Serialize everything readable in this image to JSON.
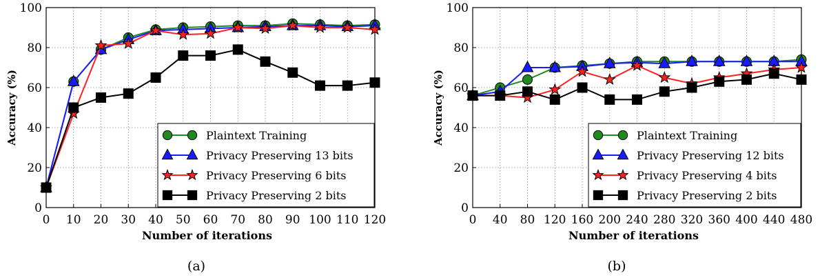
{
  "chart_data": [
    {
      "type": "line",
      "caption": "(a)",
      "xlabel": "Number of iterations",
      "ylabel": "Accuracy (%)",
      "xlim": [
        0,
        120
      ],
      "ylim": [
        0,
        100
      ],
      "x_ticks": [
        0,
        10,
        20,
        30,
        40,
        50,
        60,
        70,
        80,
        90,
        100,
        110,
        120
      ],
      "y_ticks": [
        0,
        20,
        40,
        60,
        80,
        100
      ],
      "grid": true,
      "legend_position": "bottom-right",
      "x": [
        0,
        10,
        20,
        30,
        40,
        50,
        60,
        70,
        80,
        90,
        100,
        110,
        120
      ],
      "series": [
        {
          "name": "Plaintext Training",
          "marker": "circle",
          "color": "#1f8a1f",
          "values": [
            10,
            63,
            79,
            85,
            89,
            90,
            90.5,
            91,
            91,
            92,
            91.5,
            91,
            91.5
          ]
        },
        {
          "name": "Privacy Preserving 13 bits",
          "marker": "triangle",
          "color": "#1a1aff",
          "values": [
            10,
            63,
            79,
            84,
            88.5,
            89,
            89.5,
            90,
            90.5,
            91,
            91,
            90.5,
            91
          ]
        },
        {
          "name": "Privacy Preserving 6 bits",
          "marker": "star",
          "color": "#ff2020",
          "values": [
            10,
            47,
            81,
            82,
            88.5,
            86.5,
            87,
            90,
            89.5,
            91,
            90,
            90,
            89
          ]
        },
        {
          "name": "Privacy Preserving 2 bits",
          "marker": "square",
          "color": "#000000",
          "values": [
            10,
            50,
            55,
            57,
            65,
            76,
            76,
            79,
            73,
            67.5,
            61,
            61,
            62.5
          ]
        }
      ]
    },
    {
      "type": "line",
      "caption": "(b)",
      "xlabel": "Number of iterations",
      "ylabel": "Accuracy (%)",
      "xlim": [
        0,
        480
      ],
      "ylim": [
        0,
        100
      ],
      "x_ticks": [
        0,
        40,
        80,
        120,
        160,
        200,
        240,
        280,
        320,
        360,
        400,
        440,
        480
      ],
      "y_ticks": [
        0,
        20,
        40,
        60,
        80,
        100
      ],
      "grid": true,
      "legend_position": "bottom-right",
      "x": [
        0,
        40,
        80,
        120,
        160,
        200,
        240,
        280,
        320,
        360,
        400,
        440,
        480
      ],
      "series": [
        {
          "name": "Plaintext Training",
          "marker": "circle",
          "color": "#1f8a1f",
          "values": [
            56,
            60,
            64,
            70,
            71,
            72,
            73,
            73,
            73,
            73,
            73,
            73,
            74
          ]
        },
        {
          "name": "Privacy Preserving 12 bits",
          "marker": "triangle",
          "color": "#1a1aff",
          "values": [
            56,
            58,
            70,
            70,
            70.5,
            72,
            72.5,
            72,
            73,
            73,
            73,
            73,
            73
          ]
        },
        {
          "name": "Privacy Preserving 4 bits",
          "marker": "star",
          "color": "#ff2020",
          "values": [
            56,
            56,
            55,
            59,
            68,
            64,
            71,
            65,
            62,
            65,
            67,
            69,
            70
          ]
        },
        {
          "name": "Privacy Preserving 2 bits",
          "marker": "square",
          "color": "#000000",
          "values": [
            56,
            56,
            58,
            54,
            60,
            54,
            54,
            58,
            60,
            63,
            64,
            67,
            64
          ]
        }
      ]
    }
  ]
}
